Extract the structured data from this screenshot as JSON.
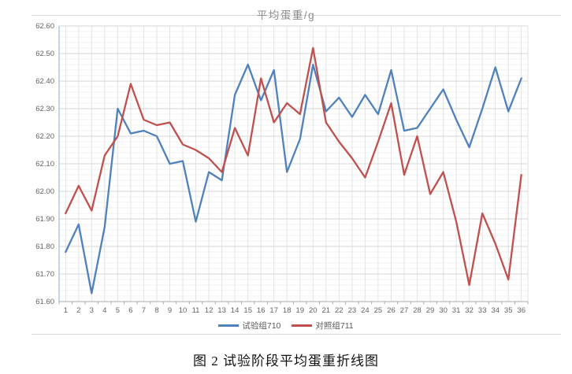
{
  "caption": "图 2 试验阶段平均蛋重折线图",
  "chart_data": {
    "type": "line",
    "title": "平均蛋重/g",
    "xlabel": "",
    "ylabel": "",
    "ylim": [
      61.6,
      62.6
    ],
    "ytick_step": 0.1,
    "ytick_minor_step": 0.02,
    "ytick_decimals": 2,
    "grid": true,
    "legend_position": "bottom",
    "categories": [
      1,
      2,
      3,
      4,
      5,
      6,
      7,
      8,
      9,
      10,
      11,
      12,
      13,
      14,
      15,
      16,
      17,
      18,
      19,
      20,
      21,
      22,
      23,
      24,
      25,
      26,
      27,
      28,
      29,
      30,
      31,
      32,
      33,
      34,
      35,
      36
    ],
    "series": [
      {
        "name": "试验组710",
        "color": "#4F81BD",
        "values": [
          61.78,
          61.88,
          61.63,
          61.87,
          62.3,
          62.21,
          62.22,
          62.2,
          62.1,
          62.11,
          61.89,
          62.07,
          62.04,
          62.35,
          62.46,
          62.33,
          62.44,
          62.07,
          62.19,
          62.46,
          62.29,
          62.34,
          62.27,
          62.35,
          62.28,
          62.44,
          62.22,
          62.23,
          62.3,
          62.37,
          62.26,
          62.16,
          62.3,
          62.45,
          62.29,
          62.41
        ]
      },
      {
        "name": "对照组711",
        "color": "#C0504D",
        "values": [
          61.92,
          62.02,
          61.93,
          62.13,
          62.2,
          62.39,
          62.26,
          62.24,
          62.25,
          62.17,
          62.15,
          62.12,
          62.07,
          62.23,
          62.13,
          62.41,
          62.25,
          62.32,
          62.28,
          62.52,
          62.25,
          62.18,
          62.12,
          62.05,
          62.18,
          62.32,
          62.06,
          62.2,
          61.99,
          62.07,
          61.89,
          61.66,
          61.92,
          61.81,
          61.68,
          62.06
        ]
      }
    ],
    "style": {
      "major_grid_color": "#D6D6D6",
      "minor_grid_color": "#F1F1F1",
      "vertical_grid_color": "#E3E3E3",
      "y_axis_line_color": "#9FB9D8",
      "x_axis_line_color": "#ABABAB",
      "tick_color": "#ABABAB",
      "axis_label_color": "#636363",
      "title_color": "#8C8C8C",
      "border_color": "#D9D9D9"
    }
  }
}
